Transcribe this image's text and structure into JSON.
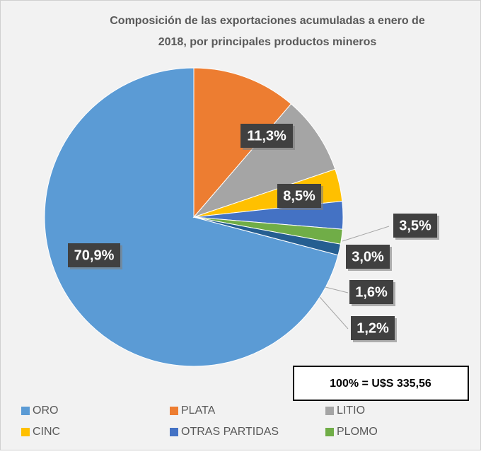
{
  "chart_data": {
    "type": "pie",
    "title": "Composición de las exportaciones acumuladas a enero de 2018, por principales productos mineros",
    "categories": [
      "ORO",
      "PLATA",
      "LITIO",
      "CINC",
      "OTRAS PARTIDAS",
      "PLOMO",
      null
    ],
    "values": [
      70.9,
      11.3,
      8.5,
      3.5,
      3.0,
      1.6,
      1.2
    ],
    "value_labels": [
      "70,9%",
      "11,3%",
      "8,5%",
      "3,5%",
      "3,0%",
      "1,6%",
      "1,2%"
    ],
    "colors": [
      "#5b9bd5",
      "#ed7d31",
      "#a5a5a5",
      "#ffc000",
      "#4472c4",
      "#70ad47",
      "#255e91"
    ],
    "annotation": "100% = U$S 335,56",
    "legend": "bottom"
  }
}
